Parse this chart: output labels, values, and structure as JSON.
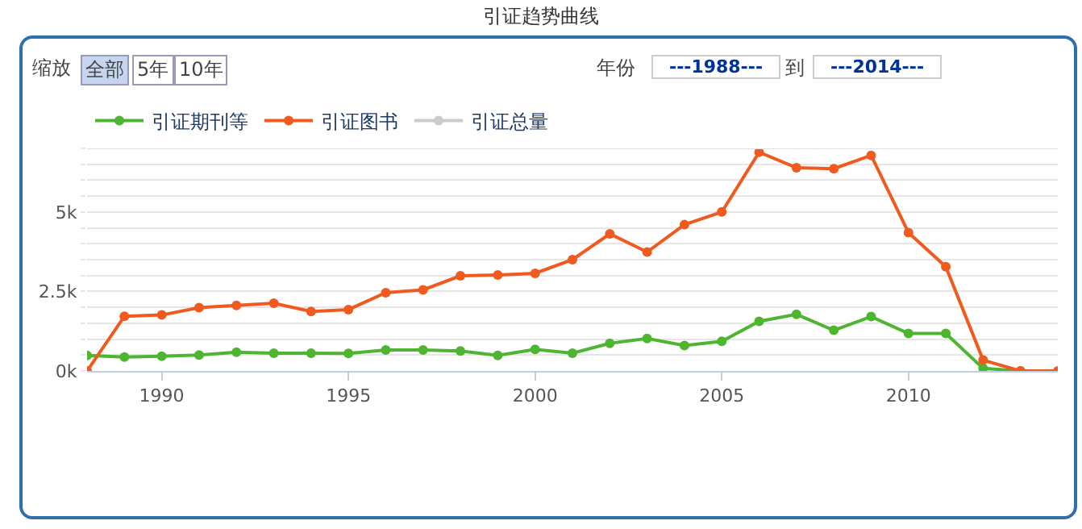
{
  "chart_data": {
    "type": "line",
    "title": "引证趋势曲线",
    "annotations": [
      "缩放",
      "全部",
      "5年",
      "10年",
      "年份",
      "---1988---",
      "到",
      "---2014---"
    ],
    "x": [
      1988,
      1989,
      1990,
      1991,
      1992,
      1993,
      1994,
      1995,
      1996,
      1997,
      1998,
      1999,
      2000,
      2001,
      2002,
      2003,
      2004,
      2005,
      2006,
      2007,
      2008,
      2009,
      2010,
      2011,
      2012,
      2013,
      2014
    ],
    "series": [
      {
        "name": "引证期刊等",
        "color": "#4db530",
        "values": [
          490,
          440,
          460,
          500,
          590,
          560,
          560,
          550,
          660,
          660,
          630,
          490,
          680,
          560,
          870,
          1020,
          800,
          930,
          1560,
          1780,
          1280,
          1710,
          1180,
          1180,
          80,
          0,
          null
        ]
      },
      {
        "name": "引证图书",
        "color": "#f05a1e",
        "values": [
          0,
          1720,
          1760,
          1990,
          2060,
          2130,
          1870,
          1930,
          2460,
          2550,
          2990,
          3020,
          3070,
          3500,
          4310,
          3740,
          4600,
          5000,
          6880,
          6390,
          6360,
          6780,
          4350,
          3280,
          340,
          0,
          0
        ]
      },
      {
        "name": "引证总量",
        "color": "#cccccc",
        "values": [
          null,
          null,
          null,
          null,
          null,
          null,
          null,
          null,
          null,
          null,
          null,
          null,
          null,
          null,
          null,
          null,
          null,
          null,
          null,
          null,
          null,
          null,
          null,
          null,
          null,
          null,
          null
        ]
      }
    ],
    "xlim": [
      1988,
      2014
    ],
    "xticks": [
      1990,
      1995,
      2000,
      2005,
      2010
    ],
    "ylim": [
      0,
      7000
    ],
    "yticks": [
      {
        "value": 0,
        "label": "0k"
      },
      {
        "value": 500,
        "label": null
      },
      {
        "value": 1000,
        "label": null
      },
      {
        "value": 1500,
        "label": null
      },
      {
        "value": 2000,
        "label": null
      },
      {
        "value": 2500,
        "label": "2.5k"
      },
      {
        "value": 3000,
        "label": null
      },
      {
        "value": 3500,
        "label": null
      },
      {
        "value": 4000,
        "label": null
      },
      {
        "value": 4500,
        "label": null
      },
      {
        "value": 5000,
        "label": "5k"
      },
      {
        "value": 5500,
        "label": null
      },
      {
        "value": 6000,
        "label": null
      },
      {
        "value": 6500,
        "label": null
      },
      {
        "value": 7000,
        "label": null
      }
    ],
    "grid": "y",
    "legend": "top left",
    "marker": "circle",
    "line_style": "solid"
  }
}
